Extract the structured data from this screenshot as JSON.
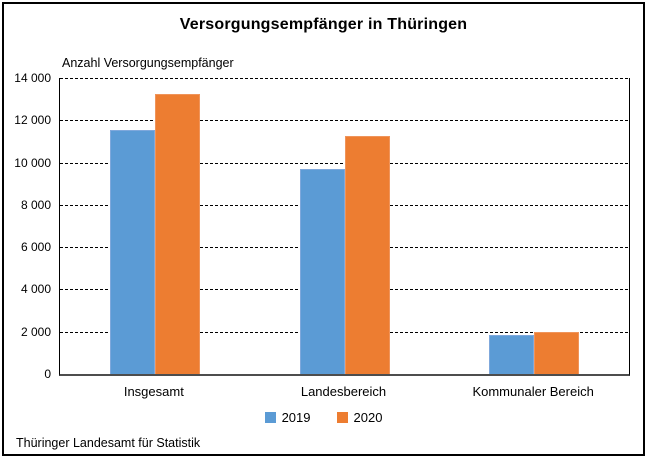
{
  "title": "Versorgungsempfänger in Thüringen",
  "axis_label": "Anzahl Versorgungsempfänger",
  "source": "Thüringer Landesamt für Statistik",
  "colors": {
    "series_2019": "#5B9BD5",
    "series_2020": "#ED7D31",
    "gridline": "#000000",
    "axis_line": "#4d4d4d"
  },
  "chart_data": {
    "type": "bar",
    "title": "Versorgungsempfänger in Thüringen",
    "ylabel": "Anzahl Versorgungsempfänger",
    "xlabel": "",
    "categories": [
      "Insgesamt",
      "Landesbereich",
      "Kommunaler Bereich"
    ],
    "series": [
      {
        "name": "2019",
        "color": "#5B9BD5",
        "border_color": "#7FA8DC",
        "values": [
          11550,
          9700,
          1850
        ]
      },
      {
        "name": "2020",
        "color": "#ED7D31",
        "border_color": "#F0945A",
        "values": [
          13250,
          11250,
          2000
        ]
      }
    ],
    "ylim": [
      0,
      14000
    ],
    "ytick_step": 2000,
    "ytick_labels": [
      "0",
      "2 000",
      "4 000",
      "6 000",
      "8 000",
      "10 000",
      "12 000",
      "14 000"
    ],
    "grid": "horizontal dashed",
    "legend_position": "bottom",
    "source": "Thüringer Landesamt für Statistik"
  }
}
